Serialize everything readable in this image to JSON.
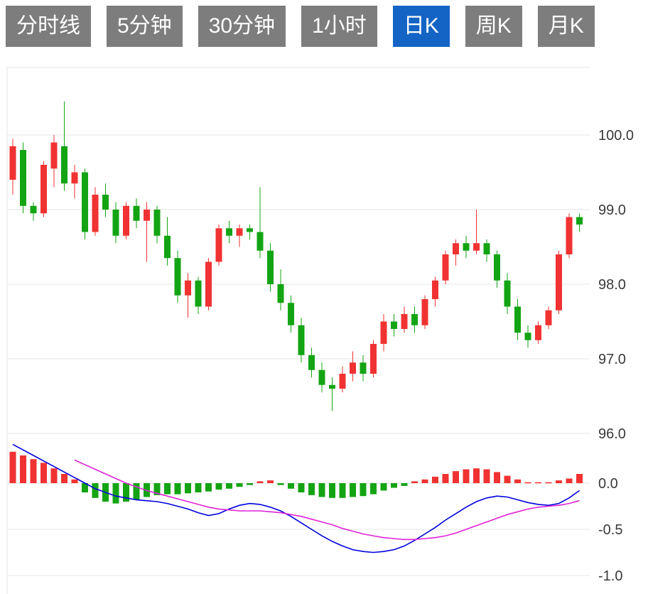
{
  "tabs": [
    {
      "label": "分时线",
      "active": false
    },
    {
      "label": "5分钟",
      "active": false
    },
    {
      "label": "30分钟",
      "active": false
    },
    {
      "label": "1小时",
      "active": false
    },
    {
      "label": "日K",
      "active": true
    },
    {
      "label": "周K",
      "active": false
    },
    {
      "label": "月K",
      "active": false
    }
  ],
  "chart_data": {
    "type": "candlestick",
    "title": "",
    "main_panel": {
      "y_tick_labels": [
        "100.0",
        "99.0",
        "98.0",
        "97.0",
        "96.0"
      ],
      "y_ticks": [
        100.0,
        99.0,
        98.0,
        97.0,
        96.0
      ],
      "ylim": [
        96.0,
        100.9
      ],
      "candles_ohlc": [
        [
          99.4,
          99.95,
          99.2,
          99.85
        ],
        [
          99.8,
          99.9,
          98.95,
          99.05
        ],
        [
          99.05,
          99.1,
          98.85,
          98.95
        ],
        [
          98.95,
          99.65,
          98.9,
          99.6
        ],
        [
          99.55,
          100.0,
          99.3,
          99.9
        ],
        [
          99.85,
          100.45,
          99.25,
          99.35
        ],
        [
          99.35,
          99.6,
          99.15,
          99.5
        ],
        [
          99.5,
          99.55,
          98.6,
          98.7
        ],
        [
          98.7,
          99.3,
          98.65,
          99.2
        ],
        [
          99.2,
          99.35,
          98.9,
          99.0
        ],
        [
          99.0,
          99.1,
          98.55,
          98.65
        ],
        [
          98.65,
          99.1,
          98.6,
          99.05
        ],
        [
          99.05,
          99.15,
          98.75,
          98.85
        ],
        [
          98.85,
          99.1,
          98.3,
          99.0
        ],
        [
          99.0,
          99.05,
          98.55,
          98.65
        ],
        [
          98.65,
          98.9,
          98.25,
          98.35
        ],
        [
          98.35,
          98.45,
          97.75,
          97.85
        ],
        [
          97.85,
          98.15,
          97.55,
          98.05
        ],
        [
          98.05,
          98.1,
          97.6,
          97.7
        ],
        [
          97.7,
          98.35,
          97.65,
          98.3
        ],
        [
          98.3,
          98.8,
          98.25,
          98.75
        ],
        [
          98.75,
          98.85,
          98.55,
          98.65
        ],
        [
          98.65,
          98.8,
          98.5,
          98.75
        ],
        [
          98.75,
          98.8,
          98.6,
          98.7
        ],
        [
          98.7,
          99.3,
          98.35,
          98.45
        ],
        [
          98.45,
          98.55,
          97.9,
          98.0
        ],
        [
          98.0,
          98.2,
          97.65,
          97.75
        ],
        [
          97.75,
          97.85,
          97.35,
          97.45
        ],
        [
          97.45,
          97.55,
          96.95,
          97.05
        ],
        [
          97.05,
          97.15,
          96.75,
          96.85
        ],
        [
          96.85,
          96.95,
          96.55,
          96.65
        ],
        [
          96.65,
          96.75,
          96.3,
          96.6
        ],
        [
          96.6,
          96.9,
          96.55,
          96.8
        ],
        [
          96.8,
          97.1,
          96.7,
          96.95
        ],
        [
          96.95,
          97.05,
          96.7,
          96.8
        ],
        [
          96.8,
          97.25,
          96.75,
          97.2
        ],
        [
          97.2,
          97.6,
          97.1,
          97.5
        ],
        [
          97.5,
          97.6,
          97.3,
          97.4
        ],
        [
          97.4,
          97.7,
          97.35,
          97.6
        ],
        [
          97.6,
          97.7,
          97.35,
          97.45
        ],
        [
          97.45,
          97.85,
          97.4,
          97.8
        ],
        [
          97.8,
          98.1,
          97.7,
          98.05
        ],
        [
          98.05,
          98.45,
          98.0,
          98.4
        ],
        [
          98.4,
          98.6,
          98.25,
          98.55
        ],
        [
          98.55,
          98.65,
          98.35,
          98.45
        ],
        [
          98.45,
          99.0,
          98.4,
          98.55
        ],
        [
          98.55,
          98.6,
          98.3,
          98.4
        ],
        [
          98.4,
          98.45,
          97.95,
          98.05
        ],
        [
          98.05,
          98.15,
          97.6,
          97.7
        ],
        [
          97.7,
          97.8,
          97.25,
          97.35
        ],
        [
          97.35,
          97.45,
          97.15,
          97.25
        ],
        [
          97.25,
          97.5,
          97.2,
          97.45
        ],
        [
          97.45,
          97.7,
          97.4,
          97.65
        ],
        [
          97.65,
          98.45,
          97.6,
          98.4
        ],
        [
          98.4,
          98.95,
          98.35,
          98.9
        ],
        [
          98.9,
          98.95,
          98.7,
          98.8
        ]
      ]
    },
    "macd_panel": {
      "y_tick_labels": [
        "0.0",
        "-0.5",
        "-1.0"
      ],
      "y_ticks": [
        0.0,
        -0.5,
        -1.0
      ],
      "ylim": [
        -1.2,
        0.5
      ],
      "histogram": [
        0.34,
        0.3,
        0.26,
        0.22,
        0.16,
        0.1,
        0.04,
        -0.1,
        -0.16,
        -0.2,
        -0.22,
        -0.2,
        -0.18,
        -0.15,
        -0.13,
        -0.12,
        -0.12,
        -0.11,
        -0.1,
        -0.09,
        -0.07,
        -0.06,
        -0.04,
        -0.02,
        0.02,
        0.03,
        -0.02,
        -0.06,
        -0.1,
        -0.13,
        -0.15,
        -0.16,
        -0.16,
        -0.15,
        -0.14,
        -0.12,
        -0.08,
        -0.05,
        -0.03,
        0.02,
        0.04,
        0.07,
        0.1,
        0.13,
        0.15,
        0.16,
        0.15,
        0.12,
        0.08,
        0.04,
        0.01,
        0.01,
        0.01,
        0.03,
        0.05,
        0.1
      ],
      "dif_line": [
        0.42,
        0.36,
        0.3,
        0.24,
        0.18,
        0.12,
        0.06,
        0.0,
        -0.06,
        -0.1,
        -0.14,
        -0.16,
        -0.18,
        -0.19,
        -0.2,
        -0.22,
        -0.25,
        -0.28,
        -0.32,
        -0.35,
        -0.33,
        -0.28,
        -0.24,
        -0.22,
        -0.23,
        -0.26,
        -0.3,
        -0.36,
        -0.43,
        -0.5,
        -0.57,
        -0.63,
        -0.68,
        -0.72,
        -0.74,
        -0.75,
        -0.74,
        -0.72,
        -0.68,
        -0.62,
        -0.55,
        -0.48,
        -0.4,
        -0.33,
        -0.26,
        -0.2,
        -0.16,
        -0.14,
        -0.15,
        -0.18,
        -0.21,
        -0.23,
        -0.24,
        -0.22,
        -0.16,
        -0.08
      ],
      "dea_line": [
        null,
        null,
        null,
        null,
        null,
        null,
        0.25,
        0.2,
        0.15,
        0.1,
        0.05,
        0.0,
        -0.04,
        -0.08,
        -0.11,
        -0.14,
        -0.17,
        -0.2,
        -0.23,
        -0.26,
        -0.28,
        -0.29,
        -0.3,
        -0.3,
        -0.3,
        -0.31,
        -0.32,
        -0.34,
        -0.36,
        -0.39,
        -0.42,
        -0.45,
        -0.49,
        -0.52,
        -0.55,
        -0.57,
        -0.59,
        -0.6,
        -0.61,
        -0.61,
        -0.6,
        -0.59,
        -0.57,
        -0.54,
        -0.5,
        -0.46,
        -0.42,
        -0.38,
        -0.34,
        -0.31,
        -0.28,
        -0.26,
        -0.25,
        -0.24,
        -0.22,
        -0.19
      ]
    },
    "colors": {
      "up": "#f03232",
      "down": "#13a413",
      "dif": "#0000dd",
      "dea": "#e022d8",
      "grid": "#e4e4e4",
      "axis_text": "#3a3a3a",
      "tab_bg": "#7d7d7d",
      "tab_active_bg": "#1464c6",
      "tab_text": "#ffffff"
    }
  }
}
